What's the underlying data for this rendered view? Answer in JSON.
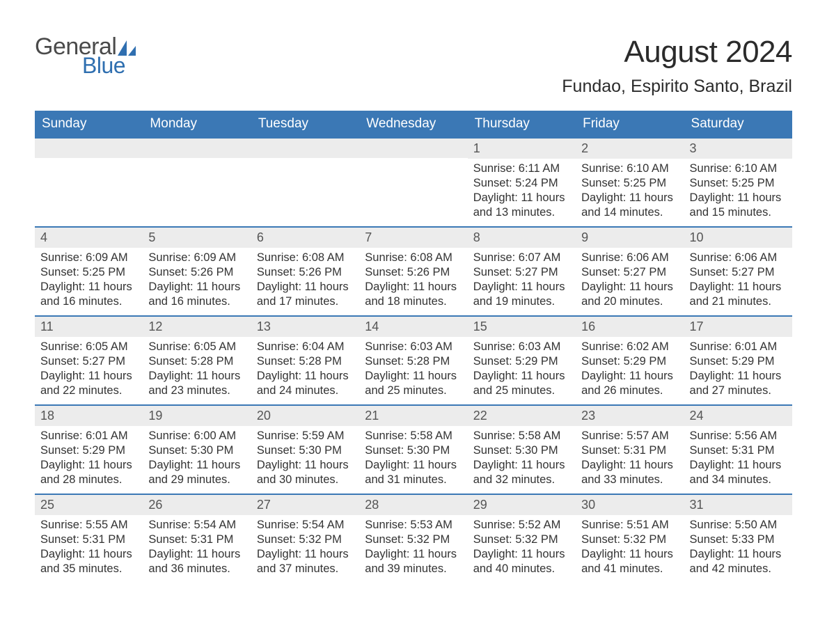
{
  "logo": {
    "word1": "General",
    "word2": "Blue",
    "sail_color": "#2f6fb0",
    "text_color_top": "#4a4a4a",
    "text_color_bottom": "#2f6fb0"
  },
  "title": "August 2024",
  "location": "Fundao, Espirito Santo, Brazil",
  "colors": {
    "header_bg": "#3b78b5",
    "header_text": "#ffffff",
    "daynum_bg": "#ececec",
    "week_border": "#3b78b5",
    "body_text": "#333333",
    "daynum_text": "#555555",
    "page_bg": "#ffffff"
  },
  "fonts": {
    "title_size": 44,
    "location_size": 25,
    "header_size": 19,
    "daynum_size": 18,
    "body_size": 16.5
  },
  "weekday_labels": [
    "Sunday",
    "Monday",
    "Tuesday",
    "Wednesday",
    "Thursday",
    "Friday",
    "Saturday"
  ],
  "weeks": [
    [
      {
        "blank": true
      },
      {
        "blank": true
      },
      {
        "blank": true
      },
      {
        "blank": true
      },
      {
        "day": "1",
        "sunrise": "Sunrise: 6:11 AM",
        "sunset": "Sunset: 5:24 PM",
        "daylight": "Daylight: 11 hours and 13 minutes."
      },
      {
        "day": "2",
        "sunrise": "Sunrise: 6:10 AM",
        "sunset": "Sunset: 5:25 PM",
        "daylight": "Daylight: 11 hours and 14 minutes."
      },
      {
        "day": "3",
        "sunrise": "Sunrise: 6:10 AM",
        "sunset": "Sunset: 5:25 PM",
        "daylight": "Daylight: 11 hours and 15 minutes."
      }
    ],
    [
      {
        "day": "4",
        "sunrise": "Sunrise: 6:09 AM",
        "sunset": "Sunset: 5:25 PM",
        "daylight": "Daylight: 11 hours and 16 minutes."
      },
      {
        "day": "5",
        "sunrise": "Sunrise: 6:09 AM",
        "sunset": "Sunset: 5:26 PM",
        "daylight": "Daylight: 11 hours and 16 minutes."
      },
      {
        "day": "6",
        "sunrise": "Sunrise: 6:08 AM",
        "sunset": "Sunset: 5:26 PM",
        "daylight": "Daylight: 11 hours and 17 minutes."
      },
      {
        "day": "7",
        "sunrise": "Sunrise: 6:08 AM",
        "sunset": "Sunset: 5:26 PM",
        "daylight": "Daylight: 11 hours and 18 minutes."
      },
      {
        "day": "8",
        "sunrise": "Sunrise: 6:07 AM",
        "sunset": "Sunset: 5:27 PM",
        "daylight": "Daylight: 11 hours and 19 minutes."
      },
      {
        "day": "9",
        "sunrise": "Sunrise: 6:06 AM",
        "sunset": "Sunset: 5:27 PM",
        "daylight": "Daylight: 11 hours and 20 minutes."
      },
      {
        "day": "10",
        "sunrise": "Sunrise: 6:06 AM",
        "sunset": "Sunset: 5:27 PM",
        "daylight": "Daylight: 11 hours and 21 minutes."
      }
    ],
    [
      {
        "day": "11",
        "sunrise": "Sunrise: 6:05 AM",
        "sunset": "Sunset: 5:27 PM",
        "daylight": "Daylight: 11 hours and 22 minutes."
      },
      {
        "day": "12",
        "sunrise": "Sunrise: 6:05 AM",
        "sunset": "Sunset: 5:28 PM",
        "daylight": "Daylight: 11 hours and 23 minutes."
      },
      {
        "day": "13",
        "sunrise": "Sunrise: 6:04 AM",
        "sunset": "Sunset: 5:28 PM",
        "daylight": "Daylight: 11 hours and 24 minutes."
      },
      {
        "day": "14",
        "sunrise": "Sunrise: 6:03 AM",
        "sunset": "Sunset: 5:28 PM",
        "daylight": "Daylight: 11 hours and 25 minutes."
      },
      {
        "day": "15",
        "sunrise": "Sunrise: 6:03 AM",
        "sunset": "Sunset: 5:29 PM",
        "daylight": "Daylight: 11 hours and 25 minutes."
      },
      {
        "day": "16",
        "sunrise": "Sunrise: 6:02 AM",
        "sunset": "Sunset: 5:29 PM",
        "daylight": "Daylight: 11 hours and 26 minutes."
      },
      {
        "day": "17",
        "sunrise": "Sunrise: 6:01 AM",
        "sunset": "Sunset: 5:29 PM",
        "daylight": "Daylight: 11 hours and 27 minutes."
      }
    ],
    [
      {
        "day": "18",
        "sunrise": "Sunrise: 6:01 AM",
        "sunset": "Sunset: 5:29 PM",
        "daylight": "Daylight: 11 hours and 28 minutes."
      },
      {
        "day": "19",
        "sunrise": "Sunrise: 6:00 AM",
        "sunset": "Sunset: 5:30 PM",
        "daylight": "Daylight: 11 hours and 29 minutes."
      },
      {
        "day": "20",
        "sunrise": "Sunrise: 5:59 AM",
        "sunset": "Sunset: 5:30 PM",
        "daylight": "Daylight: 11 hours and 30 minutes."
      },
      {
        "day": "21",
        "sunrise": "Sunrise: 5:58 AM",
        "sunset": "Sunset: 5:30 PM",
        "daylight": "Daylight: 11 hours and 31 minutes."
      },
      {
        "day": "22",
        "sunrise": "Sunrise: 5:58 AM",
        "sunset": "Sunset: 5:30 PM",
        "daylight": "Daylight: 11 hours and 32 minutes."
      },
      {
        "day": "23",
        "sunrise": "Sunrise: 5:57 AM",
        "sunset": "Sunset: 5:31 PM",
        "daylight": "Daylight: 11 hours and 33 minutes."
      },
      {
        "day": "24",
        "sunrise": "Sunrise: 5:56 AM",
        "sunset": "Sunset: 5:31 PM",
        "daylight": "Daylight: 11 hours and 34 minutes."
      }
    ],
    [
      {
        "day": "25",
        "sunrise": "Sunrise: 5:55 AM",
        "sunset": "Sunset: 5:31 PM",
        "daylight": "Daylight: 11 hours and 35 minutes."
      },
      {
        "day": "26",
        "sunrise": "Sunrise: 5:54 AM",
        "sunset": "Sunset: 5:31 PM",
        "daylight": "Daylight: 11 hours and 36 minutes."
      },
      {
        "day": "27",
        "sunrise": "Sunrise: 5:54 AM",
        "sunset": "Sunset: 5:32 PM",
        "daylight": "Daylight: 11 hours and 37 minutes."
      },
      {
        "day": "28",
        "sunrise": "Sunrise: 5:53 AM",
        "sunset": "Sunset: 5:32 PM",
        "daylight": "Daylight: 11 hours and 39 minutes."
      },
      {
        "day": "29",
        "sunrise": "Sunrise: 5:52 AM",
        "sunset": "Sunset: 5:32 PM",
        "daylight": "Daylight: 11 hours and 40 minutes."
      },
      {
        "day": "30",
        "sunrise": "Sunrise: 5:51 AM",
        "sunset": "Sunset: 5:32 PM",
        "daylight": "Daylight: 11 hours and 41 minutes."
      },
      {
        "day": "31",
        "sunrise": "Sunrise: 5:50 AM",
        "sunset": "Sunset: 5:33 PM",
        "daylight": "Daylight: 11 hours and 42 minutes."
      }
    ]
  ]
}
